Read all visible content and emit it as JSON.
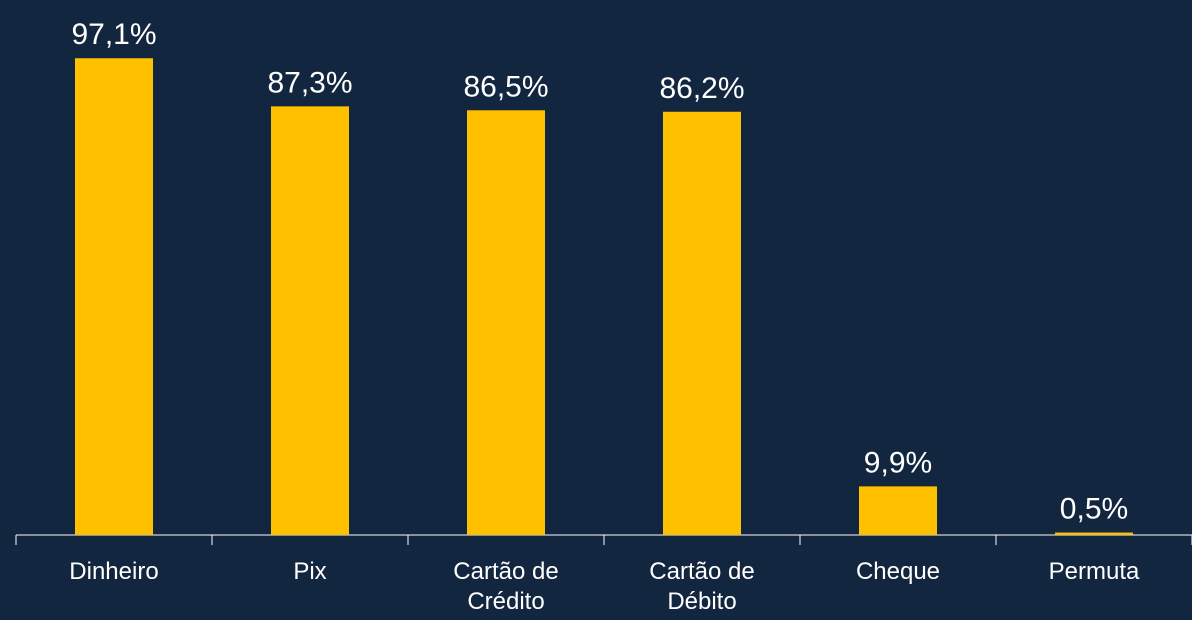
{
  "chart_data": {
    "type": "bar",
    "categories": [
      "Dinheiro",
      "Pix",
      "Cartão de Crédito",
      "Cartão de Débito",
      "Cheque",
      "Permuta"
    ],
    "values": [
      97.1,
      87.3,
      86.5,
      86.2,
      9.9,
      0.5
    ],
    "value_labels": [
      "97,1%",
      "87,3%",
      "86,5%",
      "86,2%",
      "9,9%",
      "0,5%"
    ],
    "color": "#ffc000"
  }
}
